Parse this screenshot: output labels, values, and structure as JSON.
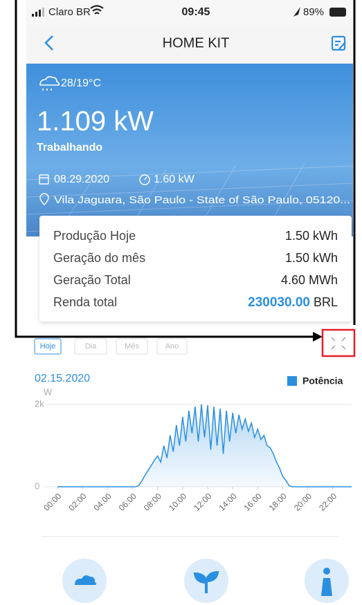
{
  "status_bar": {
    "carrier": "Claro BR",
    "time": "09:45",
    "battery": "89%"
  },
  "header": {
    "title": "HOME KIT"
  },
  "hero": {
    "weather": "28/19°C",
    "power": "1.109 kW",
    "status": "Trabalhando",
    "date": "08.29.2020",
    "capacity": "1.60 kW",
    "location": "Vila Jaguara, São Paulo - State of São Paulo, 05120..."
  },
  "summary": {
    "rows": [
      {
        "label": "Produção Hoje",
        "value": "1.50 kWh"
      },
      {
        "label": "Geração do mês",
        "value": "1.50 kWh"
      },
      {
        "label": "Geração Total",
        "value": "4.60 MWh"
      },
      {
        "label": "Renda total",
        "value": "230030.00",
        "unit": "BRL"
      }
    ]
  },
  "tabs": [
    "Hoje",
    "Dia",
    "Mês",
    "Ano"
  ],
  "chart_data": {
    "type": "line",
    "title": "02.15.2020",
    "y_label": "W",
    "x": [
      0,
      6,
      6.25,
      6.5,
      6.75,
      7,
      7.25,
      7.5,
      7.75,
      8,
      8.25,
      8.5,
      8.75,
      9,
      9.25,
      9.5,
      9.75,
      10,
      10.25,
      10.5,
      10.75,
      11,
      11.25,
      11.5,
      11.75,
      12,
      12.25,
      12.5,
      12.75,
      13,
      13.25,
      13.5,
      13.75,
      14,
      14.25,
      14.5,
      14.75,
      15,
      15.25,
      15.5,
      15.75,
      16,
      16.25,
      16.5,
      16.75,
      17,
      17.25,
      17.5,
      17.75,
      18,
      18.25,
      18.5,
      18.75,
      23.5
    ],
    "series": [
      {
        "name": "Potência",
        "color": "#2b8fe0",
        "values": [
          0,
          0,
          0,
          30,
          150,
          280,
          400,
          520,
          650,
          750,
          600,
          1000,
          700,
          1250,
          850,
          1500,
          1000,
          1700,
          1100,
          1850,
          1300,
          1950,
          1100,
          2000,
          1200,
          1980,
          900,
          1950,
          1000,
          1900,
          800,
          1850,
          1100,
          1800,
          1300,
          1750,
          1400,
          1650,
          1350,
          1550,
          1200,
          1400,
          1150,
          1250,
          1000,
          950,
          800,
          600,
          450,
          250,
          150,
          30,
          0,
          0
        ]
      }
    ],
    "xlim": [
      0,
      23.5
    ],
    "xticks": [
      {
        "value": 0,
        "label": "00:00"
      },
      {
        "value": 2,
        "label": "02:00"
      },
      {
        "value": 4,
        "label": "04:00"
      },
      {
        "value": 6,
        "label": "06:00"
      },
      {
        "value": 8,
        "label": "08:00"
      },
      {
        "value": 10,
        "label": "10:00"
      },
      {
        "value": 12,
        "label": "12:00"
      },
      {
        "value": 14,
        "label": "14:00"
      },
      {
        "value": 16,
        "label": "16:00"
      },
      {
        "value": 18,
        "label": "18:00"
      },
      {
        "value": 20,
        "label": "20:00"
      },
      {
        "value": 22,
        "label": "22:00"
      }
    ],
    "ylim": [
      0,
      2000
    ],
    "yticks": [
      0,
      {
        "value": 2000,
        "label": "2k"
      }
    ],
    "grid": true,
    "legend": "top-right"
  }
}
